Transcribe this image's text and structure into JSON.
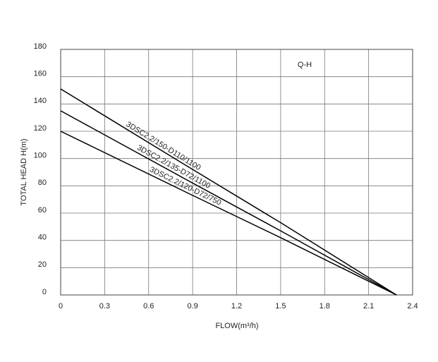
{
  "chart_data": {
    "type": "line",
    "annotation": "Q-H",
    "x_label": "FLOW(m³/h)",
    "y_label": "TOTAL HEAD H(m)",
    "x": [
      0,
      0.9,
      1.5,
      2.29
    ],
    "series": [
      {
        "name": "3DSC2.2/150-D110/1100",
        "color": "#000000",
        "values": [
          151,
          92,
          53,
          0
        ]
      },
      {
        "name": "3DSC2.2/135-D72/1100",
        "color": "#000000",
        "values": [
          135,
          82,
          47,
          0
        ]
      },
      {
        "name": "3DSC2.2/120-D72/750",
        "color": "#000000",
        "values": [
          120,
          73,
          42,
          0
        ]
      }
    ],
    "xlim": [
      0,
      2.4
    ],
    "xticks": [
      0,
      0.3,
      0.6,
      0.9,
      1.2,
      1.5,
      1.8,
      2.1,
      2.4
    ],
    "ylim": [
      0,
      180
    ],
    "yticks": [
      0,
      20,
      40,
      60,
      80,
      100,
      120,
      140,
      160,
      180
    ],
    "grid": true
  }
}
